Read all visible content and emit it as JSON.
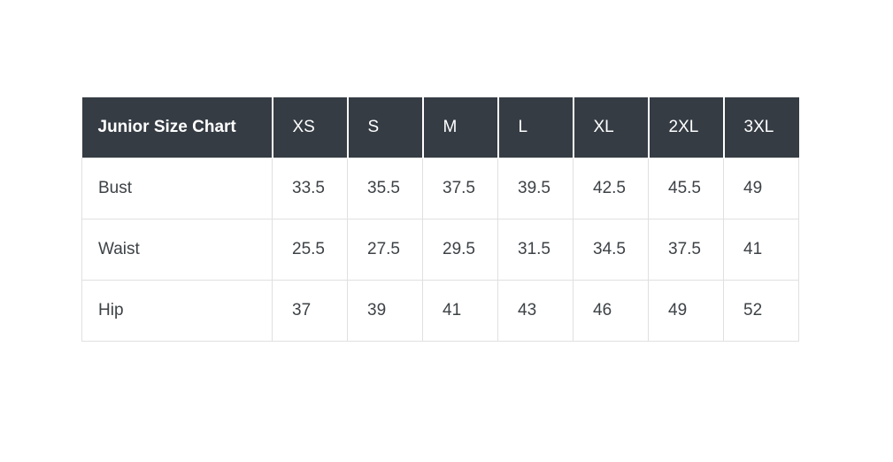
{
  "page": {
    "background": "#ffffff"
  },
  "theme": {
    "header_bg": "#353c44",
    "header_text": "#ffffff",
    "body_text": "#3d4246",
    "border": "#e0e0e0"
  },
  "chart_data": {
    "type": "table",
    "title": "Junior Size Chart",
    "columns": [
      "XS",
      "S",
      "M",
      "L",
      "XL",
      "2XL",
      "3XL"
    ],
    "rows": [
      {
        "label": "Bust",
        "values": [
          "33.5",
          "35.5",
          "37.5",
          "39.5",
          "42.5",
          "45.5",
          "49"
        ]
      },
      {
        "label": "Waist",
        "values": [
          "25.5",
          "27.5",
          "29.5",
          "31.5",
          "34.5",
          "37.5",
          "41"
        ]
      },
      {
        "label": "Hip",
        "values": [
          "37",
          "39",
          "41",
          "43",
          "46",
          "49",
          "52"
        ]
      }
    ]
  }
}
